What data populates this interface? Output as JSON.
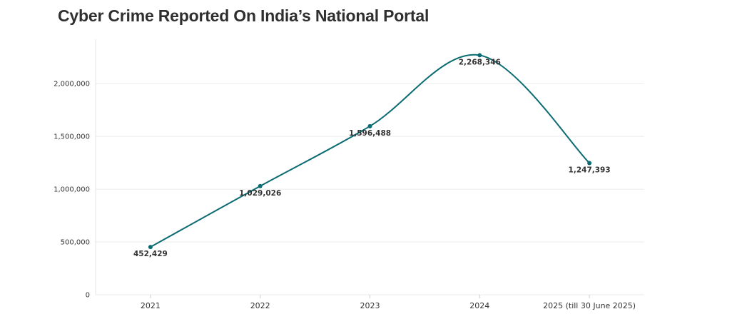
{
  "title": "Cyber Crime Reported On India’s National Portal",
  "chart_data": {
    "type": "line",
    "title": "Cyber Crime Reported On India’s National Portal",
    "xlabel": "",
    "ylabel": "",
    "categories": [
      "2021",
      "2022",
      "2023",
      "2024",
      "2025 (till 30 June 2025)"
    ],
    "values": [
      452429,
      1029026,
      1596488,
      2268346,
      1247393
    ],
    "data_labels": [
      "452,429",
      "1,029,026",
      "1,596,488",
      "2,268,346",
      "1,247,393"
    ],
    "y_ticks": [
      0,
      500000,
      1000000,
      1500000,
      2000000
    ],
    "y_tick_labels": [
      "0",
      "500,000",
      "1,000,000",
      "1,500,000",
      "2,000,000"
    ],
    "ylim": [
      0,
      2420000
    ],
    "grid": true,
    "smooth": true,
    "line_color": "#0b6b72"
  }
}
